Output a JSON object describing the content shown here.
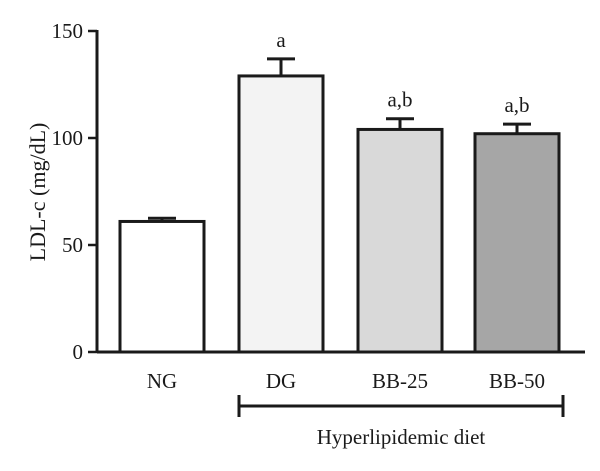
{
  "chart_data": {
    "type": "bar",
    "ylabel": "LDL-c (mg/dL)",
    "ylim": [
      0,
      150
    ],
    "yticks": [
      0,
      50,
      100,
      150
    ],
    "grid": false,
    "categories": [
      "NG",
      "DG",
      "BB-25",
      "BB-50"
    ],
    "values": [
      61,
      129,
      104,
      102
    ],
    "errors": [
      1.5,
      8,
      5,
      4.5
    ],
    "annotations": [
      "",
      "a",
      "a,b",
      "a,b"
    ],
    "bar_colors": [
      "#ffffff",
      "#f3f3f3",
      "#d9d9d9",
      "#a6a6a6"
    ],
    "group": {
      "label": "Hyperlipidemic diet",
      "categories": [
        "DG",
        "BB-25",
        "BB-50"
      ]
    }
  }
}
